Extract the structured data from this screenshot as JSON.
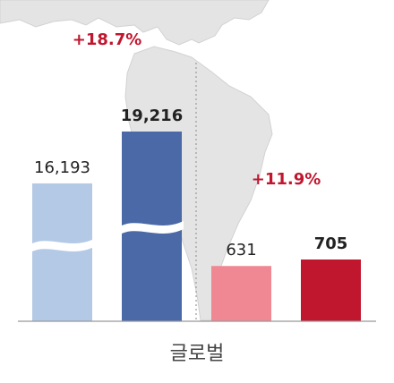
{
  "chart_data": {
    "type": "bar",
    "title": "",
    "xlabel": "글로벌",
    "ylabel": "",
    "broken_axis": true,
    "categories": [
      "",
      "",
      "",
      ""
    ],
    "groups": [
      {
        "change_label": "+18.7%",
        "bars": [
          {
            "value": 16193,
            "label": "16,193",
            "color": "#b3c9e6",
            "emphasis": false
          },
          {
            "value": 19216,
            "label": "19,216",
            "color": "#4a69a6",
            "emphasis": true
          }
        ]
      },
      {
        "change_label": "+11.9%",
        "bars": [
          {
            "value": 631,
            "label": "631",
            "color": "#ef8892",
            "emphasis": false
          },
          {
            "value": 705,
            "label": "705",
            "color": "#c0162e",
            "emphasis": true
          }
        ]
      }
    ],
    "grid": false,
    "legend": "none"
  },
  "colors": {
    "change_label": "#c0162e",
    "value_label": "#222222",
    "xlabel": "#444444",
    "baseline": "#999999",
    "divider": "#9a9a9a",
    "map": "#e4e4e4",
    "map_outline": "#d2d2d2"
  }
}
